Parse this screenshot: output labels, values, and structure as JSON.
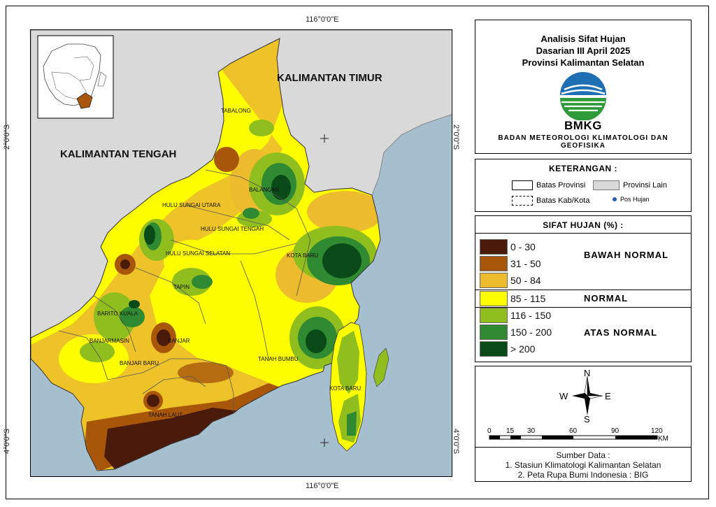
{
  "frame": {
    "coordinates": {
      "lon_top": "116°0'0\"E",
      "lon_bottom": "116°0'0\"E",
      "lat_2_left": "2°0'0\"S",
      "lat_2_right": "2°0'0\"S",
      "lat_4_left": "4°0'0\"S",
      "lat_4_right": "4°0'0\"S"
    }
  },
  "map": {
    "region_labels": {
      "kalimantan_timur": "KALIMANTAN TIMUR",
      "kalimantan_tengah": "KALIMANTAN TENGAH"
    },
    "district_labels": {
      "tabalong": "TABALONG",
      "balangan": "BALANGAN",
      "hulu_sungai_utara": "HULU SUNGAI UTARA",
      "hulu_sungai_tengah": "HULU SUNGAI TENGAH",
      "hulu_sungai_selatan": "HULU SUNGAI SELATAN",
      "kota_baru_north": "KOTA BARU",
      "tapin": "TAPIN",
      "barito_kuala": "BARITO KUALA",
      "banjarmasin": "BANJARMASIN",
      "banjar": "BANJAR",
      "banjar_baru": "BANJAR BARU",
      "tanah_bumbu": "TANAH BUMBU",
      "kota_baru_south": "KOTA BARU",
      "tanah_laut": "TANAH LAUT"
    },
    "colors": {
      "sea": "#a6bfcf",
      "other_province": "#d9d9d9"
    }
  },
  "title_panel": {
    "line1": "Analisis Sifat Hujan",
    "line2": "Dasarian III April 2025",
    "line3": "Provinsi Kalimantan Selatan",
    "logo_text": "BMKG",
    "agency": "BADAN METEOROLOGI KLIMATOLOGI DAN GEOFISIKA"
  },
  "legend": {
    "title": "KETERANGAN :",
    "items": [
      {
        "label": "Batas Provinsi",
        "symbol": "solid-box"
      },
      {
        "label": "Provinsi Lain",
        "symbol": "grey-box"
      },
      {
        "label": "Batas Kab/Kota",
        "symbol": "dashed-box"
      },
      {
        "label": "Pos Hujan",
        "symbol": "blue-dot"
      }
    ]
  },
  "sifat_hujan": {
    "title": "SIFAT HUJAN (%) :",
    "classes": [
      {
        "range": "0 - 30",
        "color": "#4a1a0a"
      },
      {
        "range": "31 - 50",
        "color": "#a8560a"
      },
      {
        "range": "50 - 84",
        "color": "#ecbc2e"
      },
      {
        "range": "85 - 115",
        "color": "#fefe00"
      },
      {
        "range": "116 - 150",
        "color": "#8fbe1e"
      },
      {
        "range": "150 - 200",
        "color": "#2f8a32"
      },
      {
        "range": "> 200",
        "color": "#0a4a18"
      }
    ],
    "categories": {
      "below": "BAWAH NORMAL",
      "normal": "NORMAL",
      "above": "ATAS NORMAL"
    }
  },
  "scale": {
    "north_arrow": {
      "n": "N",
      "s": "S",
      "e": "E",
      "w": "W"
    },
    "ticks": [
      "0",
      "15",
      "30",
      "60",
      "90",
      "120"
    ],
    "unit": "KM"
  },
  "source": {
    "heading": "Sumber Data :",
    "line1": "1. Stasiun Klimatologi Kalimantan Selatan",
    "line2": "2. Peta Rupa Bumi Indonesia : BIG"
  }
}
